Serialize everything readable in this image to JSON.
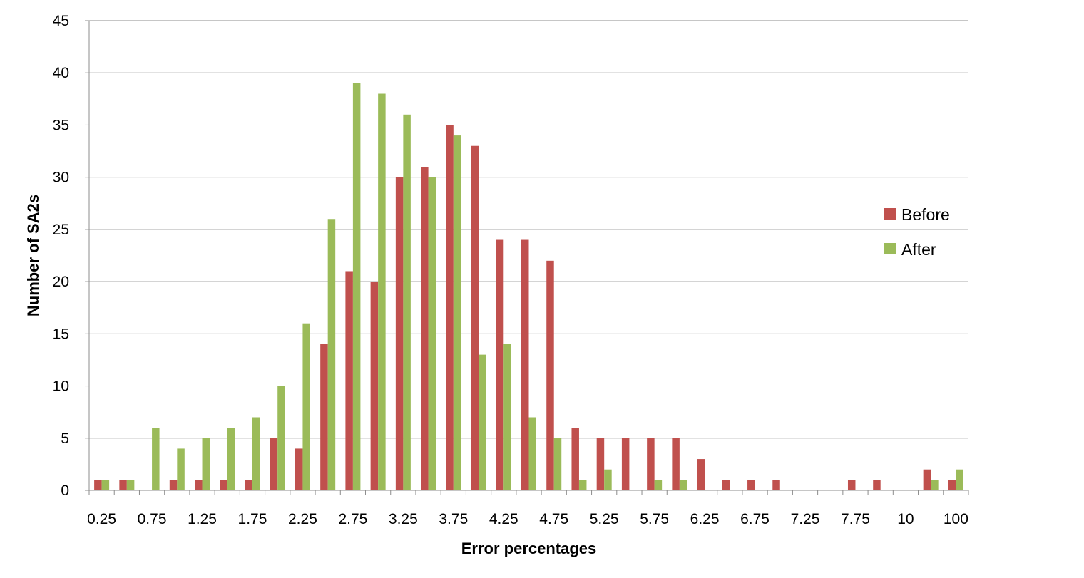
{
  "chart_data": {
    "type": "bar",
    "title": "",
    "xlabel": "Error percentages",
    "ylabel": "Number of SA2s",
    "ylim": [
      0,
      45
    ],
    "yticks": [
      0,
      5,
      10,
      15,
      20,
      25,
      30,
      35,
      40,
      45
    ],
    "grid": "horizontal",
    "legend_position": "right",
    "categories": [
      "0.25",
      "0.5",
      "0.75",
      "1",
      "1.25",
      "1.5",
      "1.75",
      "2",
      "2.25",
      "2.5",
      "2.75",
      "3",
      "3.25",
      "3.5",
      "3.75",
      "4",
      "4.25",
      "4.5",
      "4.75",
      "5",
      "5.25",
      "5.5",
      "5.75",
      "6",
      "6.25",
      "6.5",
      "6.75",
      "7",
      "7.25",
      "7.5",
      "7.75",
      "8",
      "10",
      "20",
      "100"
    ],
    "tick_labels": [
      "0.25",
      "",
      "0.75",
      "",
      "1.25",
      "",
      "1.75",
      "",
      "2.25",
      "",
      "2.75",
      "",
      "3.25",
      "",
      "3.75",
      "",
      "4.25",
      "",
      "4.75",
      "",
      "5.25",
      "",
      "5.75",
      "",
      "6.25",
      "",
      "6.75",
      "",
      "7.25",
      "",
      "7.75",
      "",
      "10",
      "",
      "100"
    ],
    "series": [
      {
        "name": "Before",
        "color": "#c0504d",
        "values": [
          1,
          1,
          0,
          1,
          1,
          1,
          1,
          5,
          4,
          14,
          21,
          20,
          30,
          31,
          35,
          33,
          24,
          24,
          22,
          6,
          5,
          5,
          5,
          5,
          3,
          1,
          1,
          1,
          0,
          0,
          1,
          1,
          0,
          2,
          1
        ]
      },
      {
        "name": "After",
        "color": "#9bbb59",
        "values": [
          1,
          1,
          6,
          4,
          5,
          6,
          7,
          10,
          16,
          26,
          39,
          38,
          36,
          30,
          34,
          13,
          14,
          7,
          5,
          1,
          2,
          0,
          1,
          1,
          0,
          0,
          0,
          0,
          0,
          0,
          0,
          0,
          0,
          1,
          2
        ]
      }
    ]
  }
}
